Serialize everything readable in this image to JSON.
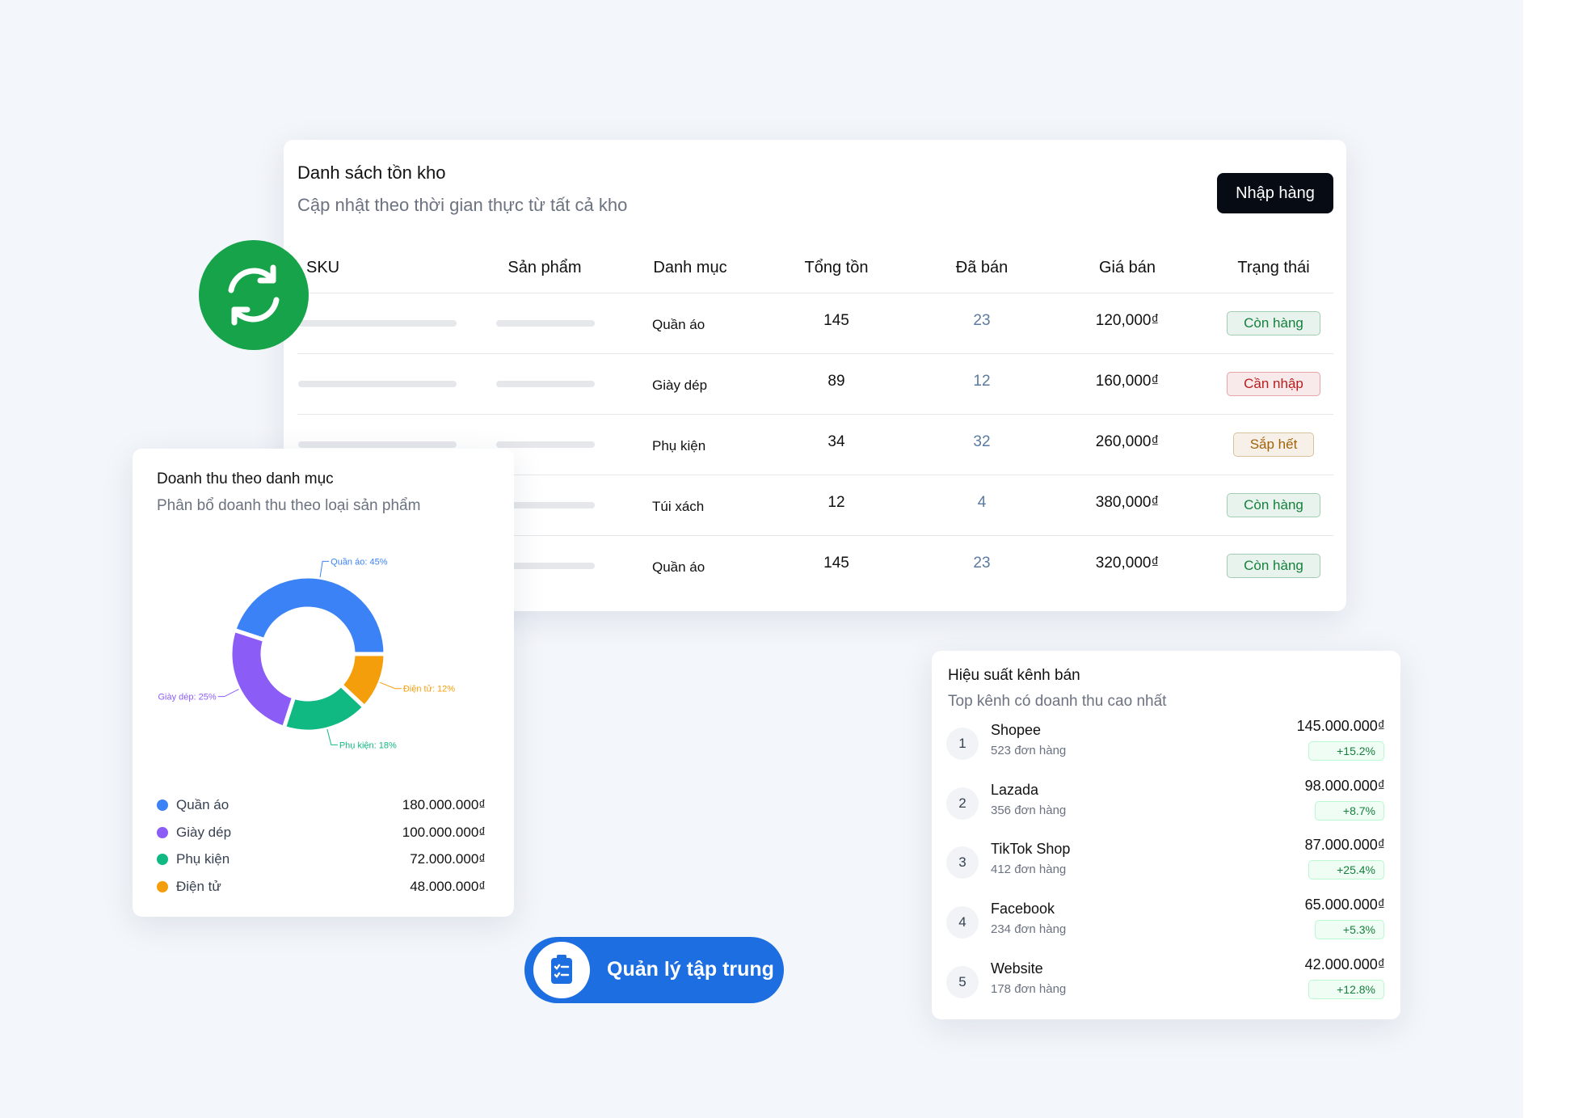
{
  "inventory": {
    "title": "Danh sách tồn kho",
    "subtitle": "Cập nhật theo thời gian thực từ tất cả kho",
    "button": "Nhập hàng",
    "headers": [
      "SKU",
      "Sản phẩm",
      "Danh mục",
      "Tổng tồn",
      "Đã bán",
      "Giá bán",
      "Trạng thái"
    ],
    "rows": [
      {
        "category": "Quần áo",
        "total": "145",
        "sold": "23",
        "price": "120,000₫",
        "status": "Còn hàng",
        "status_color": "#15803d"
      },
      {
        "category": "Giày dép",
        "total": "89",
        "sold": "12",
        "price": "160,000₫",
        "status": "Cần nhập",
        "status_color": "#b91c1c"
      },
      {
        "category": "Phụ kiện",
        "total": "34",
        "sold": "32",
        "price": "260,000₫",
        "status": "Sắp hết",
        "status_color": "#a16207"
      },
      {
        "category": "Túi xách",
        "total": "12",
        "sold": "4",
        "price": "380,000₫",
        "status": "Còn hàng",
        "status_color": "#15803d"
      },
      {
        "category": "Quần áo",
        "total": "145",
        "sold": "23",
        "price": "320,000₫",
        "status": "Còn hàng",
        "status_color": "#15803d"
      }
    ]
  },
  "revenue": {
    "title": "Doanh thu theo danh mục",
    "subtitle": "Phân bổ doanh thu theo loại sản phẩm",
    "slices": [
      {
        "name": "Quần áo",
        "value": 45,
        "label": "Quần áo: 45%",
        "amount": "180.000.000₫",
        "color": "#3b82f6"
      },
      {
        "name": "Điện tử",
        "value": 12,
        "label": "Điện tử: 12%",
        "amount": "48.000.000₫",
        "color": "#f59e0b"
      },
      {
        "name": "Phụ kiện",
        "value": 18,
        "label": "Phụ kiện: 18%",
        "amount": "72.000.000₫",
        "color": "#10b981"
      },
      {
        "name": "Giày dép",
        "value": 25,
        "label": "Giày dép: 25%",
        "amount": "100.000.000₫",
        "color": "#8b5cf6"
      }
    ],
    "legend_order": [
      0,
      3,
      2,
      1
    ]
  },
  "channels": {
    "title": "Hiệu suất kênh bán",
    "subtitle": "Top kênh có doanh thu cao nhất",
    "items": [
      {
        "rank": "1",
        "name": "Shopee",
        "orders": "523 đơn hàng",
        "revenue": "145.000.000₫",
        "growth": "+15.2%"
      },
      {
        "rank": "2",
        "name": "Lazada",
        "orders": "356 đơn hàng",
        "revenue": "98.000.000₫",
        "growth": "+8.7%"
      },
      {
        "rank": "3",
        "name": "TikTok Shop",
        "orders": "412 đơn hàng",
        "revenue": "87.000.000₫",
        "growth": "+25.4%"
      },
      {
        "rank": "4",
        "name": "Facebook",
        "orders": "234 đơn hàng",
        "revenue": "65.000.000₫",
        "growth": "+5.3%"
      },
      {
        "rank": "5",
        "name": "Website",
        "orders": "178 đơn hàng",
        "revenue": "42.000.000₫",
        "growth": "+12.8%"
      }
    ]
  },
  "badge": "Quản lý tập trung"
}
